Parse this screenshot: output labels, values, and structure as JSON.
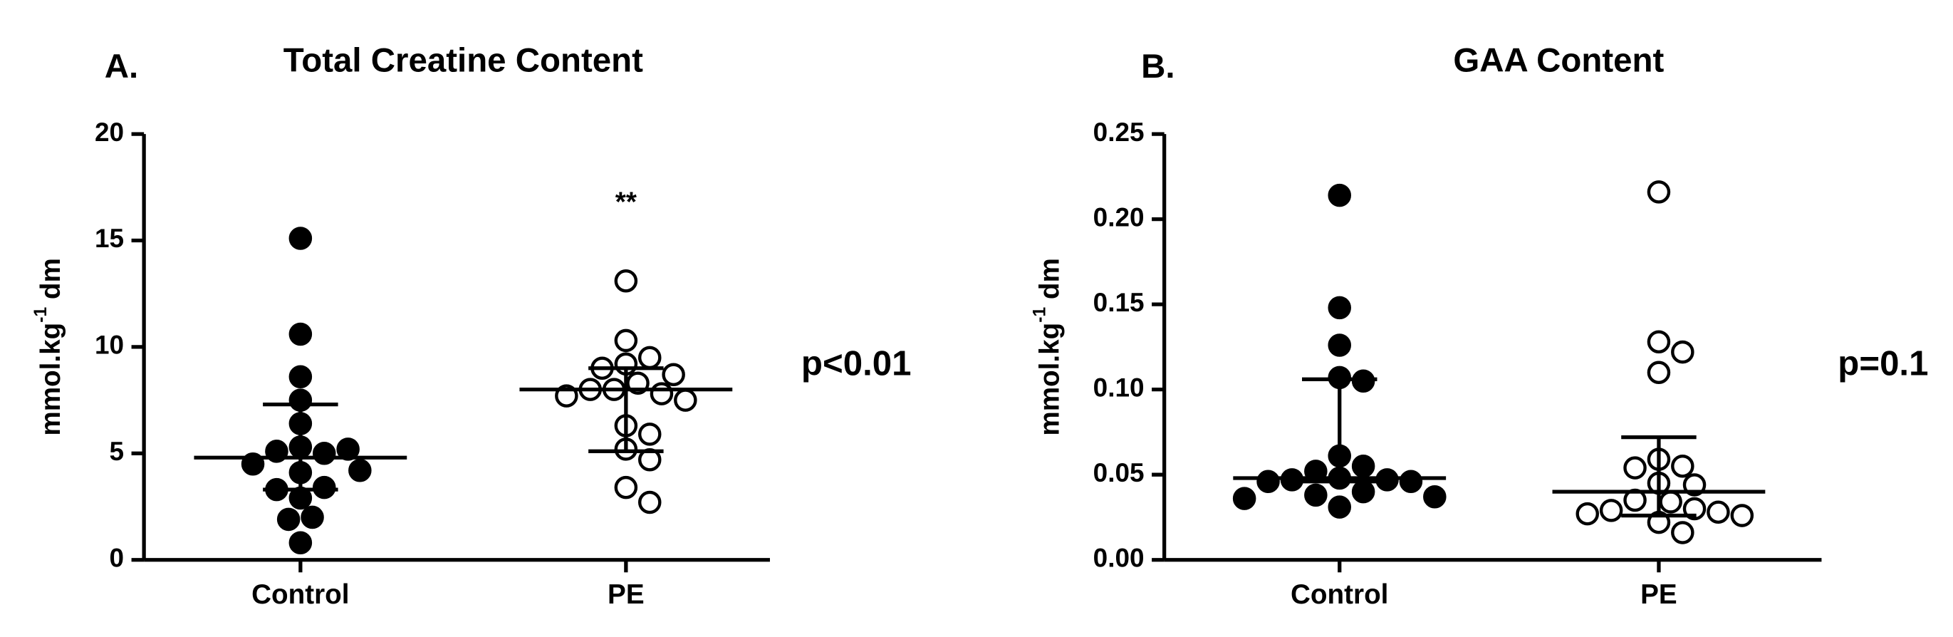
{
  "chart_data": [
    {
      "type": "strip",
      "panel": "A.",
      "title": "Total Creatine Content",
      "ylabel": {
        "text": "mmol.kg",
        "superscript": "-1",
        "suffix": "dm"
      },
      "categories": [
        "Control",
        "PE"
      ],
      "series": [
        {
          "name": "Control",
          "color": "#000000",
          "filled": true,
          "values": [
            15.1,
            10.6,
            8.6,
            7.5,
            6.4,
            5.3,
            5.0,
            5.1,
            5.2,
            4.1,
            4.5,
            4.2,
            3.4,
            3.3,
            2.9,
            2.0,
            1.9,
            0.8
          ],
          "median": 4.8,
          "q1": 3.3,
          "q3": 7.3
        },
        {
          "name": "PE",
          "color": "#000000",
          "filled": false,
          "values": [
            13.1,
            10.3,
            9.5,
            9.2,
            9.0,
            8.7,
            8.3,
            8.0,
            8.0,
            7.8,
            7.5,
            7.7,
            6.3,
            5.9,
            5.2,
            4.7,
            3.4,
            2.7
          ],
          "median": 8.0,
          "q1": 5.1,
          "q3": 9.0,
          "annotation": "**"
        }
      ],
      "pvalue": "p<0.01",
      "ylim": [
        0,
        20
      ],
      "yticks": [
        0,
        5,
        10,
        15,
        20
      ]
    },
    {
      "type": "strip",
      "panel": "B.",
      "title": "GAA Content",
      "ylabel": {
        "text": "mmol.kg",
        "superscript": "-1",
        "suffix": "dm"
      },
      "categories": [
        "Control",
        "PE"
      ],
      "series": [
        {
          "name": "Control",
          "color": "#000000",
          "filled": true,
          "values": [
            0.214,
            0.148,
            0.126,
            0.107,
            0.105,
            0.061,
            0.055,
            0.052,
            0.048,
            0.047,
            0.047,
            0.046,
            0.046,
            0.04,
            0.038,
            0.037,
            0.036,
            0.031
          ],
          "median": 0.048,
          "q1": 0.046,
          "q3": 0.106
        },
        {
          "name": "PE",
          "color": "#000000",
          "filled": false,
          "values": [
            0.216,
            0.128,
            0.122,
            0.11,
            0.059,
            0.055,
            0.054,
            0.045,
            0.044,
            0.035,
            0.034,
            0.03,
            0.029,
            0.028,
            0.027,
            0.026,
            0.022,
            0.016
          ],
          "median": 0.04,
          "q1": 0.026,
          "q3": 0.072
        }
      ],
      "pvalue": "p=0.1",
      "ylim": [
        0,
        0.25
      ],
      "yticks": [
        {
          "value": 0,
          "label": "0.00"
        },
        0.05,
        {
          "value": 0.1,
          "label": "0.10"
        },
        0.15,
        {
          "value": 0.2,
          "label": "0.20"
        },
        0.25
      ]
    }
  ]
}
